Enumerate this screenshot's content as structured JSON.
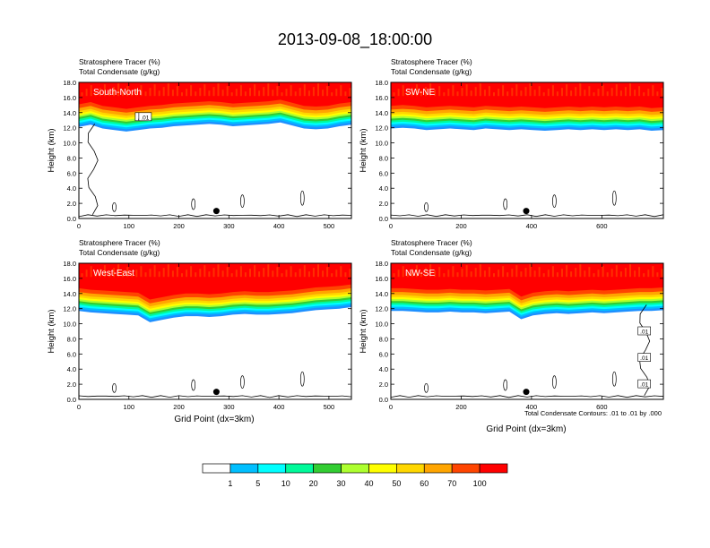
{
  "title": "2013-09-08_18:00:00",
  "chart_data": {
    "type": "heatmap",
    "variable_labels": [
      "Stratosphere Tracer   (%)",
      "Total Condensate   (g/kg)"
    ],
    "ylabel": "Height (km)",
    "xlabel": "Grid Point (dx=3km)",
    "ylim": [
      0,
      18
    ],
    "yticks": [
      "0.0",
      "2.0",
      "4.0",
      "6.0",
      "8.0",
      "10.0",
      "12.0",
      "14.0",
      "16.0",
      "18.0"
    ],
    "contour_note": "Total Condensate Contours: .01 to .01 by .000",
    "panels": [
      {
        "name": "South-North",
        "xlim": [
          0,
          545
        ],
        "xticks": [
          "0",
          "100",
          "200",
          "300",
          "400",
          "500"
        ],
        "tropopause_km": [
          14.2,
          14.5,
          14.0,
          13.8,
          13.6,
          13.8,
          14.0,
          14.1,
          14.3,
          14.4,
          14.5,
          14.6,
          14.5,
          14.3,
          14.4,
          14.5,
          14.6,
          14.8,
          14.4,
          14.0,
          13.9,
          14.0,
          14.3,
          14.5
        ],
        "marker": {
          "x": 275,
          "z": 1.0
        },
        "contour_labels": [
          ".01",
          ".01"
        ]
      },
      {
        "name": "SW-NE",
        "xlim": [
          0,
          775
        ],
        "xticks": [
          "0",
          "200",
          "400",
          "600"
        ],
        "tropopause_km": [
          14.0,
          14.1,
          14.0,
          13.8,
          13.9,
          14.0,
          13.9,
          13.8,
          14.0,
          13.9,
          13.8,
          13.9,
          13.8,
          13.7,
          13.8,
          13.9,
          13.8,
          13.9,
          13.8,
          13.9,
          13.8,
          13.9,
          13.7,
          13.8
        ],
        "marker": {
          "x": 385,
          "z": 1.0
        },
        "contour_labels": []
      },
      {
        "name": "West-East",
        "xlim": [
          0,
          545
        ],
        "xticks": [
          "0",
          "100",
          "200",
          "300",
          "400",
          "500"
        ],
        "tropopause_km": [
          13.8,
          13.6,
          13.5,
          13.4,
          13.3,
          13.2,
          12.3,
          12.6,
          12.9,
          13.1,
          13.1,
          13.0,
          13.1,
          13.3,
          13.4,
          13.3,
          13.3,
          13.4,
          13.5,
          13.7,
          13.9,
          14.0,
          14.1,
          14.3
        ],
        "marker": {
          "x": 275,
          "z": 1.0
        },
        "contour_labels": []
      },
      {
        "name": "NW-SE",
        "xlim": [
          0,
          775
        ],
        "xticks": [
          "0",
          "200",
          "400",
          "600"
        ],
        "tropopause_km": [
          13.8,
          13.8,
          13.7,
          13.6,
          13.6,
          13.7,
          13.6,
          13.6,
          13.5,
          13.6,
          13.7,
          12.7,
          13.2,
          13.4,
          13.5,
          13.4,
          13.5,
          13.6,
          13.5,
          13.6,
          13.7,
          13.8,
          13.8,
          13.9
        ],
        "marker": {
          "x": 385,
          "z": 1.0
        },
        "contour_labels": [
          ".01",
          ".01",
          ".01"
        ]
      }
    ],
    "colorbar": {
      "labels": [
        "1",
        "5",
        "10",
        "20",
        "30",
        "40",
        "50",
        "60",
        "70",
        "100"
      ],
      "colors": [
        "#ffffff",
        "#1e90ff",
        "#00bfff",
        "#00ffff",
        "#00fa9a",
        "#32cd32",
        "#adff2f",
        "#ffff00",
        "#ffd700",
        "#ffa500",
        "#ff4500",
        "#ff0000"
      ]
    }
  }
}
